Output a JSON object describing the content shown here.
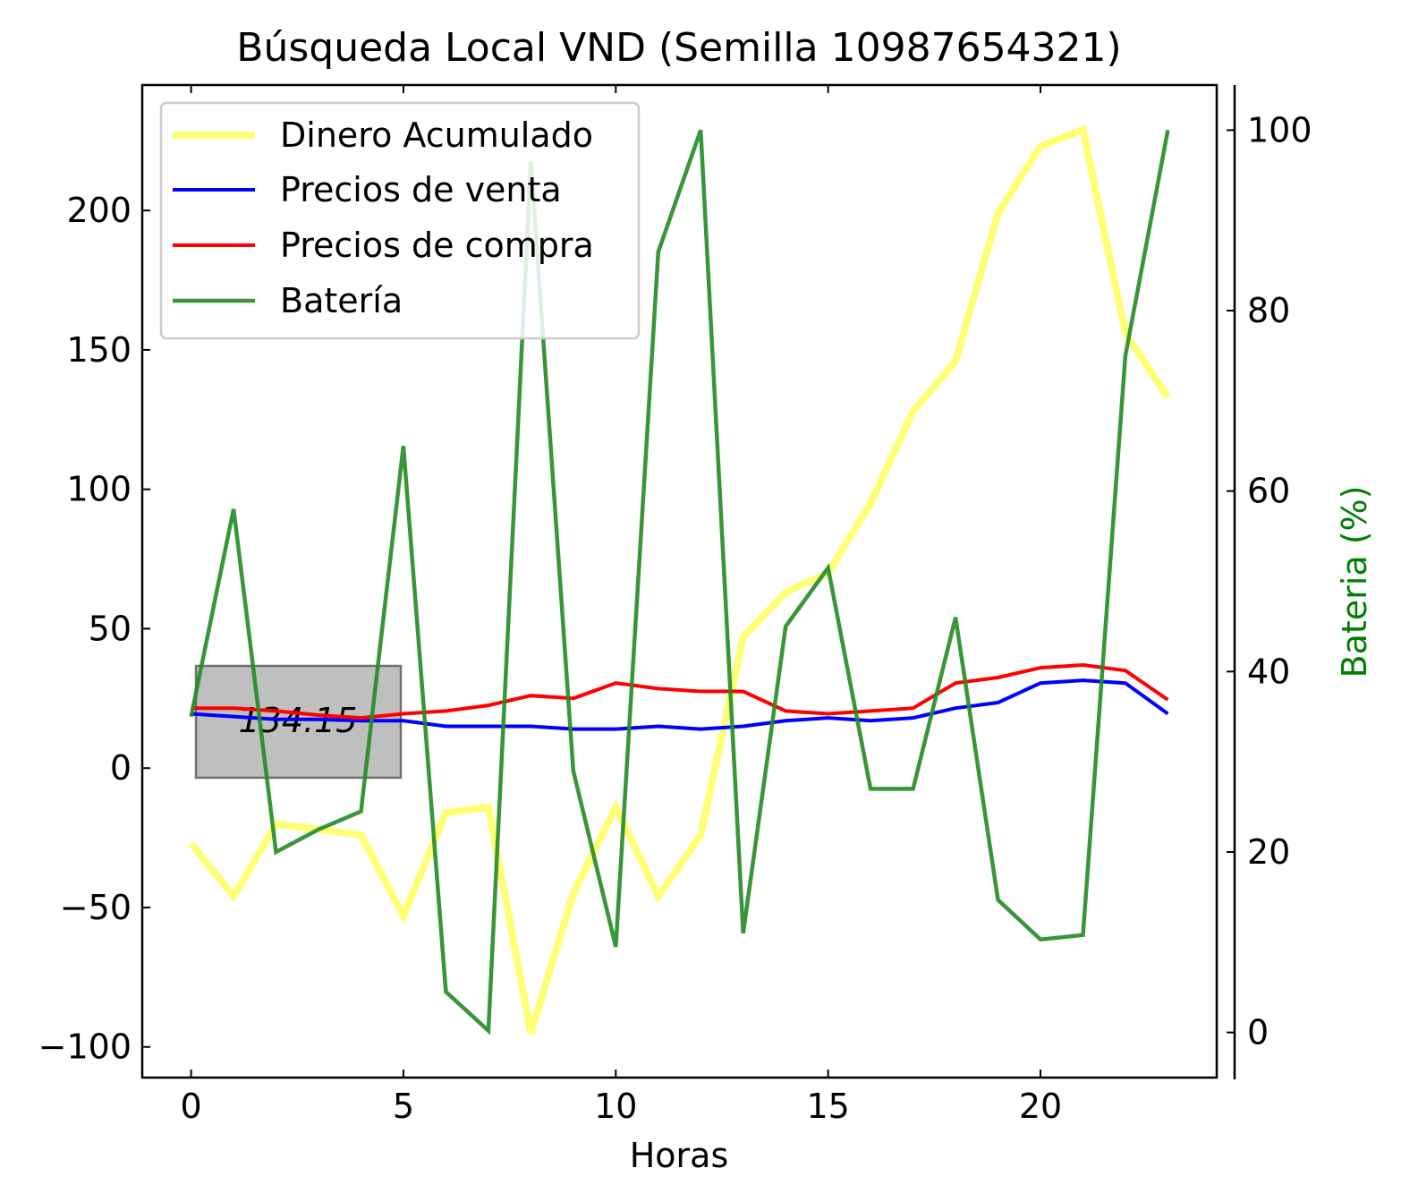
{
  "chart_data": {
    "type": "line",
    "title": "Búsqueda Local VND (Semilla 10987654321)",
    "xlabel": "Horas",
    "ylabel": "",
    "ylabel_right": "Bateria (%)",
    "xlim": [
      -1.15,
      24.15
    ],
    "ylim": [
      -111,
      245
    ],
    "ylim_right": [
      -5,
      105
    ],
    "x_ticks": [
      0,
      5,
      10,
      15,
      20
    ],
    "y_ticks": [
      200,
      150,
      100,
      50,
      0,
      -50,
      -100
    ],
    "y_tick_labels": [
      "200",
      "150",
      "100",
      "50",
      "0",
      "−50",
      "−100"
    ],
    "y_right_ticks": [
      100,
      80,
      60,
      40,
      20,
      0
    ],
    "grid": false,
    "legend_position": "top-left",
    "annotation": "134.15",
    "colors": {
      "dinero": "#ffff66",
      "venta": "#0000ff",
      "compra": "#ff0000",
      "bateria": "#228b22",
      "bateria_label": "#008000",
      "annotation_box": "#bfbfbf",
      "legend_frame": "#cccccc"
    },
    "x": [
      0,
      1,
      2,
      3,
      4,
      5,
      6,
      7,
      8,
      9,
      10,
      11,
      12,
      13,
      14,
      15,
      16,
      17,
      18,
      19,
      20,
      21,
      22,
      23
    ],
    "series": [
      {
        "name": "Dinero Acumulado",
        "axis": "left",
        "values": [
          -27,
          -46,
          -20,
          -22,
          -24,
          -53,
          -16,
          -14,
          -95,
          -45,
          -14,
          -46,
          -24,
          47,
          63,
          70,
          95,
          128,
          146,
          199,
          223,
          229,
          156,
          133
        ]
      },
      {
        "name": "Precios de venta",
        "axis": "left",
        "values": [
          19.5,
          18.5,
          17.5,
          17.5,
          17,
          17,
          15,
          15,
          15,
          14,
          14,
          15,
          14,
          15,
          17,
          18,
          17,
          18,
          21.5,
          23.5,
          30.5,
          31.5,
          30.5,
          19.5
        ]
      },
      {
        "name": "Precios de compra",
        "axis": "left",
        "values": [
          21.5,
          21.5,
          20.5,
          19,
          18,
          19.5,
          20.5,
          22.5,
          26,
          25,
          30.5,
          28.5,
          27.5,
          27.5,
          20.5,
          19.5,
          20.5,
          21.5,
          30.5,
          32.5,
          36,
          37,
          35,
          24.5
        ]
      },
      {
        "name": "Batería",
        "axis": "right",
        "values": [
          35,
          58,
          20,
          22.5,
          24.5,
          65,
          4.5,
          0.2,
          96.5,
          29,
          9.5,
          86.5,
          100,
          11,
          45,
          51.5,
          27,
          27,
          46,
          14.7,
          10.3,
          10.8,
          75,
          100
        ]
      }
    ]
  }
}
